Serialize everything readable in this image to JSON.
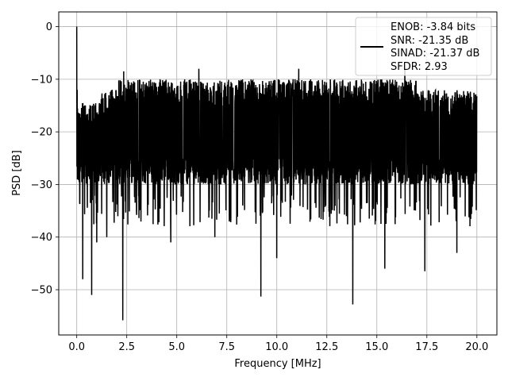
{
  "chart_data": {
    "type": "line",
    "xlabel": "Frequency [MHz]",
    "ylabel": "PSD [dB]",
    "xlim": [
      -0.9,
      21.0
    ],
    "ylim": [
      -58.6,
      2.8
    ],
    "x_ticks": [
      0.0,
      2.5,
      5.0,
      7.5,
      10.0,
      12.5,
      15.0,
      17.5,
      20.0
    ],
    "x_tick_labels": [
      "0.0",
      "2.5",
      "5.0",
      "7.5",
      "10.0",
      "12.5",
      "15.0",
      "17.5",
      "20.0"
    ],
    "y_ticks": [
      0,
      -10,
      -20,
      -30,
      -40,
      -50
    ],
    "y_tick_labels": [
      "0",
      "−10",
      "−20",
      "−30",
      "−40",
      "−50"
    ],
    "grid": true,
    "legend_position": "top-right",
    "legend_lines": [
      "ENOB: -3.84 bits",
      "SNR: -21.35 dB",
      "SINAD: -21.37 dB",
      "SFDR: 2.93"
    ],
    "series": [
      {
        "color": "#000000",
        "x_start": 0.0,
        "x_end": 20.0,
        "peak": {
          "x": 0.0,
          "y": 0.0
        },
        "spikes": [
          {
            "x": 0.02,
            "y": -12.0
          },
          {
            "x": 0.3,
            "y": -48.0
          },
          {
            "x": 0.75,
            "y": -51.0
          },
          {
            "x": 1.0,
            "y": -41.0
          },
          {
            "x": 1.5,
            "y": -40.0
          },
          {
            "x": 2.3,
            "y": -55.8
          },
          {
            "x": 2.35,
            "y": -8.5
          },
          {
            "x": 4.7,
            "y": -41.0
          },
          {
            "x": 6.1,
            "y": -8.0
          },
          {
            "x": 6.9,
            "y": -40.0
          },
          {
            "x": 9.2,
            "y": -51.3
          },
          {
            "x": 10.0,
            "y": -44.0
          },
          {
            "x": 11.1,
            "y": -8.0
          },
          {
            "x": 13.8,
            "y": -52.8
          },
          {
            "x": 15.4,
            "y": -46.0
          },
          {
            "x": 16.4,
            "y": -8.0
          },
          {
            "x": 17.4,
            "y": -46.5
          },
          {
            "x": 19.0,
            "y": -43.0
          }
        ],
        "band_upper": -12.0,
        "band_lower": -30.0
      }
    ]
  }
}
